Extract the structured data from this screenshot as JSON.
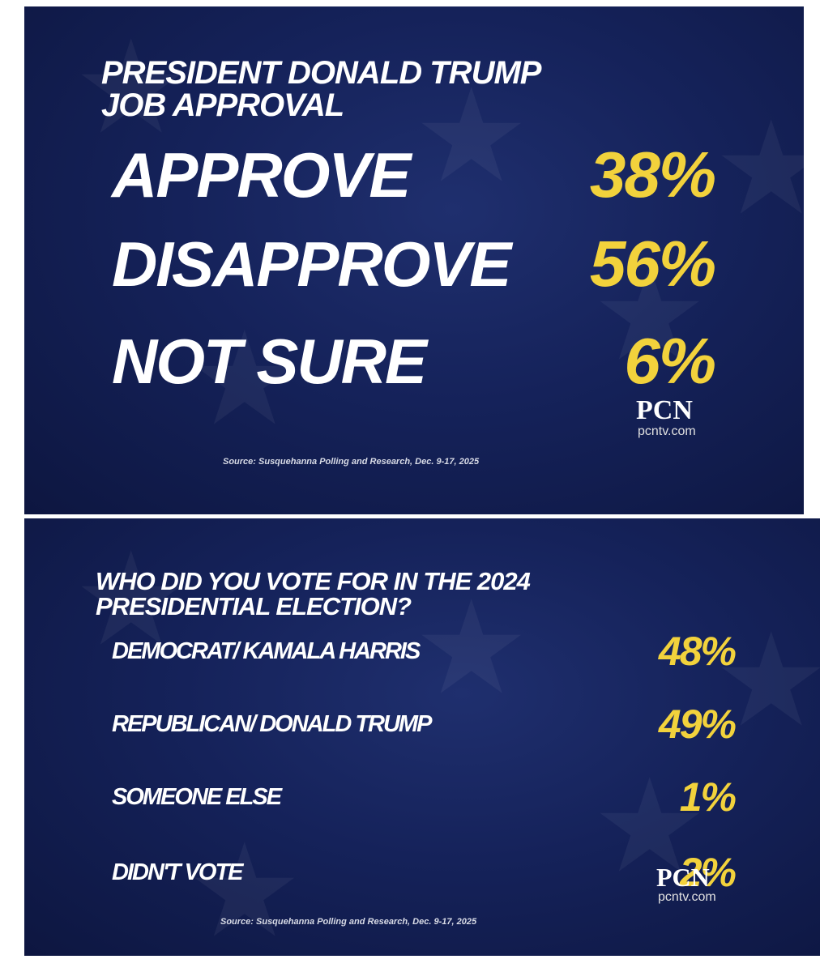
{
  "panels": [
    {
      "title_lines": [
        "PRESIDENT DONALD TRUMP",
        "JOB APPROVAL"
      ],
      "rows": [
        {
          "label": "APPROVE",
          "value": "38%"
        },
        {
          "label": "DISAPPROVE",
          "value": "56%"
        },
        {
          "label": "NOT SURE",
          "value": "6%"
        }
      ],
      "logo": "PCN",
      "logo_url": "pcntv.com",
      "source": "Source: Susquehanna Polling and Research, Dec. 9-17, 2025"
    },
    {
      "title_lines": [
        "WHO DID YOU VOTE FOR IN THE 2024",
        "PRESIDENTIAL ELECTION?"
      ],
      "rows": [
        {
          "label": "DEMOCRAT/ KAMALA HARRIS",
          "value": "48%"
        },
        {
          "label": "REPUBLICAN/ DONALD TRUMP",
          "value": "49%"
        },
        {
          "label": "SOMEONE ELSE",
          "value": "1%"
        },
        {
          "label": "DIDN'T VOTE",
          "value": "2%"
        }
      ],
      "logo": "PCN",
      "logo_url": "pcntv.com",
      "source": "Source: Susquehanna Polling and Research, Dec. 9-17, 2025"
    }
  ]
}
